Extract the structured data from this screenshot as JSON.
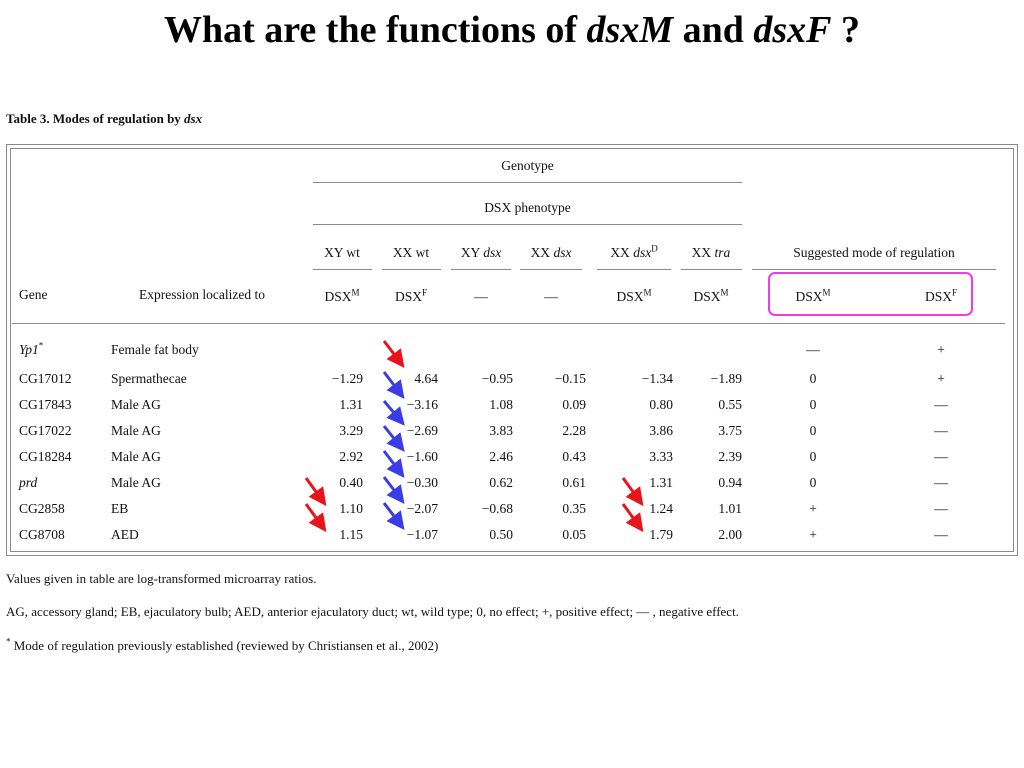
{
  "slide": {
    "title_pre": "What are the functions of ",
    "title_gene1": "dsxM",
    "title_mid": " and ",
    "title_gene2": "dsxF",
    "title_post": " ?"
  },
  "table": {
    "caption_pre": "Table 3. Modes of regulation by ",
    "caption_gene": "dsx",
    "header_genotype": "Genotype",
    "header_dsx_phenotype": "DSX phenotype",
    "header_gene": "Gene",
    "header_expression": "Expression localized to",
    "header_mode": "Suggested mode of regulation",
    "genotype_cols": [
      {
        "pre": "XY wt",
        "ital": "",
        "sup": "",
        "pheno_pre": "DSX",
        "pheno_sup": "M"
      },
      {
        "pre": "XX wt",
        "ital": "",
        "sup": "",
        "pheno_pre": "DSX",
        "pheno_sup": "F"
      },
      {
        "pre": "XY ",
        "ital": "dsx",
        "sup": "",
        "pheno_pre": "—",
        "pheno_sup": ""
      },
      {
        "pre": "XX ",
        "ital": "dsx",
        "sup": "",
        "pheno_pre": "—",
        "pheno_sup": ""
      },
      {
        "pre": "XX ",
        "ital": "dsx",
        "sup": "D",
        "pheno_pre": "DSX",
        "pheno_sup": "M"
      },
      {
        "pre": "XX ",
        "ital": "tra",
        "sup": "",
        "pheno_pre": "DSX",
        "pheno_sup": "M"
      }
    ],
    "mode_cols": [
      {
        "pre": "DSX",
        "sup": "M"
      },
      {
        "pre": "DSX",
        "sup": "F"
      }
    ],
    "rows": [
      {
        "gene": "Yp1",
        "gene_italic": true,
        "gene_sup": "*",
        "expr": "Female fat body",
        "values": [
          "",
          "",
          "",
          "",
          "",
          ""
        ],
        "mode_m": "—",
        "mode_f": "+"
      },
      {
        "gene": "CG17012",
        "gene_italic": false,
        "gene_sup": "",
        "expr": "Spermathecae",
        "values": [
          "−1.29",
          "4.64",
          "−0.95",
          "−0.15",
          "−1.34",
          "−1.89"
        ],
        "mode_m": "0",
        "mode_f": "+"
      },
      {
        "gene": "CG17843",
        "gene_italic": false,
        "gene_sup": "",
        "expr": "Male AG",
        "values": [
          "1.31",
          "−3.16",
          "1.08",
          "0.09",
          "0.80",
          "0.55"
        ],
        "mode_m": "0",
        "mode_f": "—"
      },
      {
        "gene": "CG17022",
        "gene_italic": false,
        "gene_sup": "",
        "expr": "Male AG",
        "values": [
          "3.29",
          "−2.69",
          "3.83",
          "2.28",
          "3.86",
          "3.75"
        ],
        "mode_m": "0",
        "mode_f": "—"
      },
      {
        "gene": "CG18284",
        "gene_italic": false,
        "gene_sup": "",
        "expr": "Male AG",
        "values": [
          "2.92",
          "−1.60",
          "2.46",
          "0.43",
          "3.33",
          "2.39"
        ],
        "mode_m": "0",
        "mode_f": "—"
      },
      {
        "gene": "prd",
        "gene_italic": true,
        "gene_sup": "",
        "expr": "Male AG",
        "values": [
          "0.40",
          "−0.30",
          "0.62",
          "0.61",
          "1.31",
          "0.94"
        ],
        "mode_m": "0",
        "mode_f": "—"
      },
      {
        "gene": "CG2858",
        "gene_italic": false,
        "gene_sup": "",
        "expr": "EB",
        "values": [
          "1.10",
          "−2.07",
          "−0.68",
          "0.35",
          "1.24",
          "1.01"
        ],
        "mode_m": "+",
        "mode_f": "—"
      },
      {
        "gene": "CG8708",
        "gene_italic": false,
        "gene_sup": "",
        "expr": "AED",
        "values": [
          "1.15",
          "−1.07",
          "0.50",
          "0.05",
          "1.79",
          "2.00"
        ],
        "mode_m": "+",
        "mode_f": "—"
      }
    ]
  },
  "notes": {
    "line1": "Values given in table are log-transformed microarray ratios.",
    "line2": "AG, accessory gland; EB, ejaculatory bulb; AED, anterior ejaculatory duct; wt, wild type; 0, no effect; +, positive effect; — , negative effect.",
    "line3_sup": "*",
    "line3": " Mode of regulation previously established (reviewed by Christiansen et al., 2002)"
  },
  "colors": {
    "red_arrow": "#e8141c",
    "blue_arrow": "#3c3ce6",
    "highlight_box": "#f03ce6",
    "rule": "#8a8a8a"
  }
}
